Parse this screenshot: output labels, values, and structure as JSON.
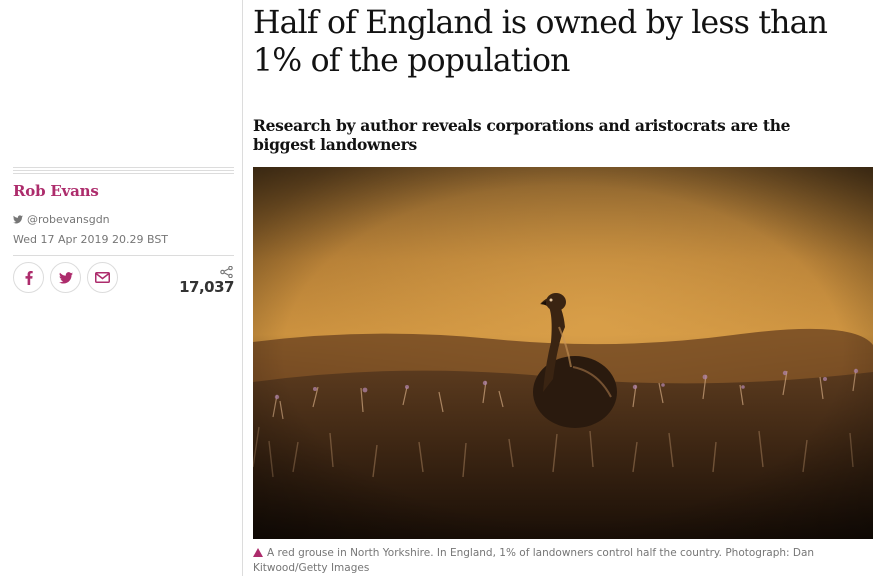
{
  "article": {
    "headline": "Half of England is owned by less than 1% of the population",
    "standfirst": "Research by author reveals corporations and aristocrats are the biggest landowners",
    "caption": "A red grouse in North Yorkshire. In England, 1% of landowners control half the country. Photograph: Dan Kitwood/Getty Images"
  },
  "meta": {
    "author": "Rob Evans",
    "twitter_handle": "@robevansgdn",
    "dateline": "Wed 17 Apr 2019 20.29 BST",
    "share_count": "17,037"
  },
  "share": {
    "icons": [
      "facebook-icon",
      "twitter-icon",
      "email-icon",
      "share-icon"
    ]
  },
  "colors": {
    "accent": "#ad2c6c",
    "text": "#121212",
    "muted": "#767676",
    "rule": "#dcdcdc"
  }
}
